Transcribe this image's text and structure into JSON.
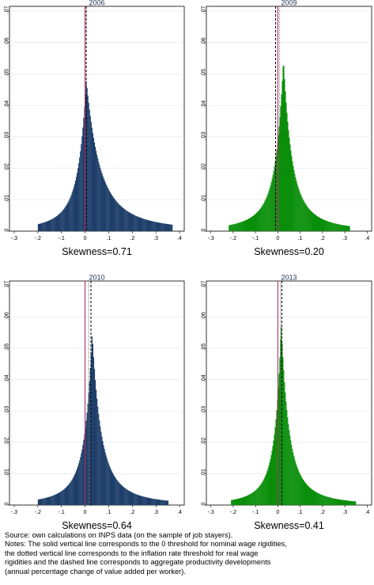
{
  "chart_data": [
    {
      "type": "bar",
      "title": "2006",
      "subtitle": "Skewness=0.71",
      "color": "#1f3f6a",
      "xlim": [
        -0.32,
        0.42
      ],
      "ylim": [
        0,
        0.0715
      ],
      "xticks": [
        "-.3",
        "-.2",
        "-.1",
        "0",
        ".1",
        ".2",
        ".3",
        ".4"
      ],
      "yticks": [
        "0",
        ".01",
        ".02",
        ".03",
        ".04",
        ".05",
        ".06",
        ".07"
      ],
      "solid_line_x": 0.0,
      "dotted_line_x": 0.0,
      "dashed_line_x": 0.005,
      "distribution": {
        "support": [
          -0.2,
          0.37
        ],
        "mode": 0.005,
        "peak": 0.048,
        "left_scale": 0.05,
        "right_scale": 0.085
      }
    },
    {
      "type": "bar",
      "title": "2009",
      "subtitle": "Skewness=0.20",
      "color": "#0b8f0b",
      "xlim": [
        -0.32,
        0.42
      ],
      "ylim": [
        0,
        0.0715
      ],
      "xticks": [
        "-.3",
        "-.2",
        "-.1",
        "0",
        ".1",
        ".2",
        ".3",
        ".4"
      ],
      "yticks": [
        "0",
        ".01",
        ".02",
        ".03",
        ".04",
        ".05",
        ".06",
        ".07"
      ],
      "solid_line_x": 0.0,
      "dotted_line_x": 0.008,
      "dashed_line_x": -0.01,
      "distribution": {
        "support": [
          -0.22,
          0.32
        ],
        "mode": 0.025,
        "peak": 0.055,
        "left_scale": 0.05,
        "right_scale": 0.055
      }
    },
    {
      "type": "bar",
      "title": "2010",
      "subtitle": "Skewness=0.64",
      "color": "#1f3f6a",
      "xlim": [
        -0.32,
        0.42
      ],
      "ylim": [
        0,
        0.0715
      ],
      "xticks": [
        "-.3",
        "-.2",
        "-.1",
        "0",
        ".1",
        ".2",
        ".3",
        ".4"
      ],
      "yticks": [
        "0",
        ".01",
        ".02",
        ".03",
        ".04",
        ".05",
        ".06",
        ".07"
      ],
      "solid_line_x": 0.0,
      "dotted_line_x": 0.015,
      "dashed_line_x": 0.025,
      "distribution": {
        "support": [
          -0.2,
          0.35
        ],
        "mode": 0.03,
        "peak": 0.055,
        "left_scale": 0.045,
        "right_scale": 0.055
      }
    },
    {
      "type": "bar",
      "title": "2013",
      "subtitle": "Skewness=0.41",
      "color": "#0b8f0b",
      "xlim": [
        -0.32,
        0.42
      ],
      "ylim": [
        0,
        0.0715
      ],
      "xticks": [
        "-.3",
        "-.2",
        "-.1",
        "0",
        ".1",
        ".2",
        ".3",
        ".4"
      ],
      "yticks": [
        "0",
        ".01",
        ".02",
        ".03",
        ".04",
        ".05",
        ".06",
        ".07"
      ],
      "solid_line_x": 0.0,
      "dotted_line_x": 0.012,
      "dashed_line_x": 0.018,
      "distribution": {
        "support": [
          -0.21,
          0.35
        ],
        "mode": 0.015,
        "peak": 0.058,
        "left_scale": 0.04,
        "right_scale": 0.05
      }
    }
  ],
  "notes": {
    "line1": "Source: own calculations on INPS data (on the sample of job stayers).",
    "line2": "Notes: The solid vertical line corresponds to the 0 threshold for nominal wage rigidities,",
    "line3": "the dotted vertical line corresponds to the inflation rate threshold for real wage",
    "line4": "rigidities and the dashed line corresponds to aggregate productivity developments",
    "line5": "(annual percentage change of value added per worker)."
  },
  "colors": {
    "solid_line": "#b0306a",
    "dashed_line": "#000000",
    "dotted_line": "#555555"
  }
}
